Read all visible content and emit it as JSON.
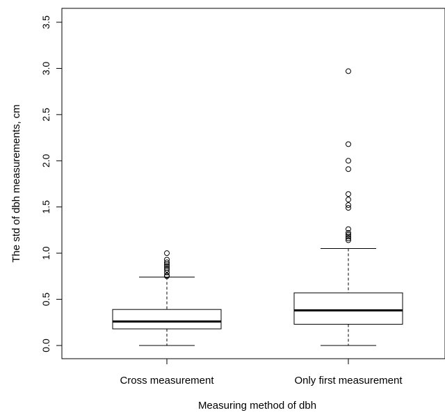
{
  "chart_data": {
    "type": "boxplot",
    "xlabel": "Measuring method of dbh",
    "ylabel": "The std of dbh measurements, cm",
    "ylim": [
      -0.1,
      3.6
    ],
    "yticks": [
      0.0,
      0.5,
      1.0,
      1.5,
      2.0,
      2.5,
      3.0,
      3.5
    ],
    "ytick_labels": [
      "0.0",
      "0.5",
      "1.0",
      "1.5",
      "2.0",
      "2.5",
      "3.0",
      "3.5"
    ],
    "grid": false,
    "categories": [
      "Cross measurement",
      "Only first measurement"
    ],
    "boxes": [
      {
        "category": "Cross measurement",
        "whisker_low": 0.0,
        "q1": 0.18,
        "median": 0.26,
        "q3": 0.39,
        "whisker_high": 0.74,
        "outliers": [
          0.75,
          0.76,
          0.79,
          0.82,
          0.84,
          0.86,
          0.88,
          0.9,
          0.93,
          1.0
        ]
      },
      {
        "category": "Only first measurement",
        "whisker_low": 0.0,
        "q1": 0.23,
        "median": 0.38,
        "q3": 0.57,
        "whisker_high": 1.05,
        "outliers": [
          1.14,
          1.16,
          1.18,
          1.2,
          1.22,
          1.26,
          1.49,
          1.52,
          1.58,
          1.64,
          1.91,
          2.0,
          2.18,
          2.97
        ]
      }
    ]
  }
}
